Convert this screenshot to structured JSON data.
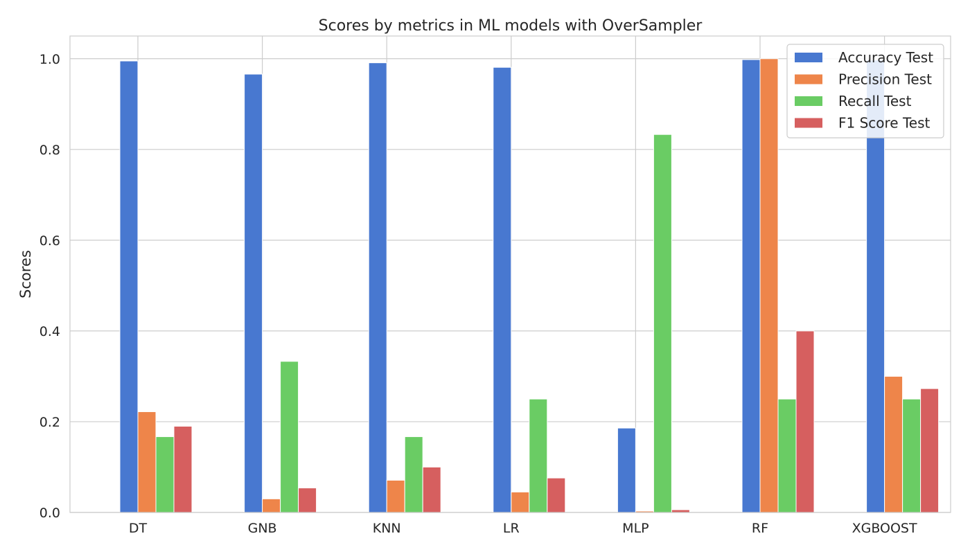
{
  "chart_data": {
    "type": "bar",
    "title": "Scores by metrics in ML models with OverSampler",
    "xlabel": "",
    "ylabel": "Scores",
    "ylim": [
      0,
      1.05
    ],
    "yticks": [
      "0.0",
      "0.2",
      "0.4",
      "0.6",
      "0.8",
      "1.0"
    ],
    "grid": true,
    "legend_position": "top-right",
    "categories": [
      "DT",
      "GNB",
      "KNN",
      "LR",
      "MLP",
      "RF",
      "XGBOOST"
    ],
    "series": [
      {
        "name": "Accuracy Test",
        "color": "#4878d0",
        "values": [
          0.995,
          0.966,
          0.991,
          0.981,
          0.186,
          0.998,
          0.997
        ]
      },
      {
        "name": "Precision Test",
        "color": "#ee854a",
        "values": [
          0.222,
          0.03,
          0.071,
          0.045,
          0.003,
          1.0,
          0.3
        ]
      },
      {
        "name": "Recall Test",
        "color": "#6acc64",
        "values": [
          0.167,
          0.333,
          0.167,
          0.25,
          0.833,
          0.25,
          0.25
        ]
      },
      {
        "name": "F1 Score Test",
        "color": "#d65f5f",
        "values": [
          0.19,
          0.054,
          0.1,
          0.076,
          0.006,
          0.4,
          0.273
        ]
      }
    ]
  }
}
